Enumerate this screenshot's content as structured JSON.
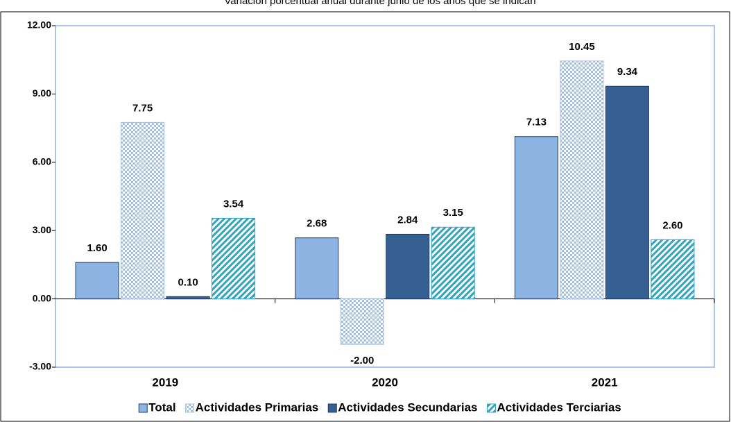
{
  "chart_data": {
    "type": "bar",
    "subtitle": "Variación porcentual anual durante junio de los años que se indican",
    "categories": [
      "2019",
      "2020",
      "2021"
    ],
    "series": [
      {
        "name": "Total",
        "color": "#8db3e2",
        "pattern": "solid",
        "values": [
          1.6,
          2.68,
          7.13
        ],
        "value_labels": [
          "1.60",
          "2.68",
          "7.13"
        ]
      },
      {
        "name": "Actividades Primarias",
        "color": "#a6c0e2",
        "pattern": "checker",
        "values": [
          7.75,
          -2.0,
          10.45
        ],
        "value_labels": [
          "7.75",
          "-2.00",
          "10.45"
        ]
      },
      {
        "name": "Actividades Secundarias",
        "color": "#376092",
        "pattern": "solid",
        "values": [
          0.1,
          2.84,
          9.34
        ],
        "value_labels": [
          "0.10",
          "2.84",
          "9.34"
        ]
      },
      {
        "name": "Actividades Terciarias",
        "color": "#31a5bf",
        "pattern": "diagonal",
        "values": [
          3.54,
          3.15,
          2.6
        ],
        "value_labels": [
          "3.54",
          "3.15",
          "2.60"
        ]
      }
    ],
    "ylim": [
      -3,
      12
    ],
    "yticks": [
      {
        "value": -3,
        "label": "-3.00"
      },
      {
        "value": 0,
        "label": "0.00"
      },
      {
        "value": 3,
        "label": "3.00"
      },
      {
        "value": 6,
        "label": "6.00"
      },
      {
        "value": 9,
        "label": "9.00"
      },
      {
        "value": 12,
        "label": "12.00"
      }
    ],
    "grid": false,
    "legend": "bottom"
  }
}
